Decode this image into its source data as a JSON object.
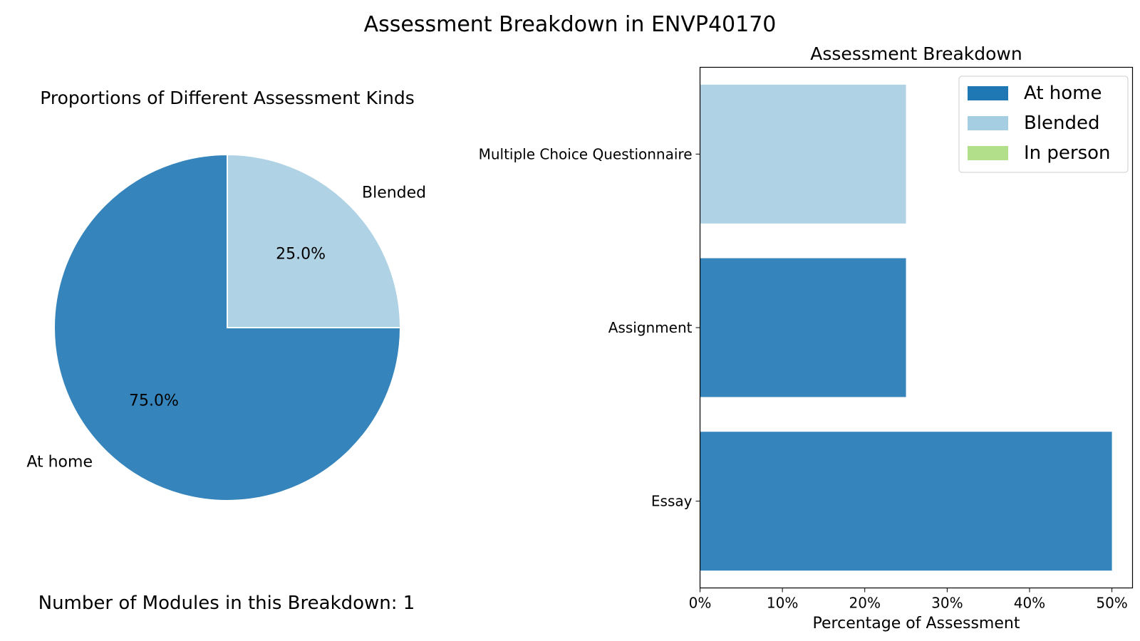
{
  "figure": {
    "title": "Assessment Breakdown in ENVP40170",
    "note": "Number of Modules in this Breakdown: 1"
  },
  "chart_data": [
    {
      "type": "pie",
      "title": "Proportions of Different Assessment Kinds",
      "slices": [
        {
          "label": "At home",
          "value": 75.0,
          "pct_label": "75.0%",
          "color": "#3584bb"
        },
        {
          "label": "Blended",
          "value": 25.0,
          "pct_label": "25.0%",
          "color": "#afd2e5"
        }
      ],
      "start_angle": 0,
      "direction": "clockwise"
    },
    {
      "type": "bar",
      "orientation": "horizontal",
      "title": "Assessment Breakdown",
      "xlabel": "Percentage of Assessment",
      "ylabel": "",
      "xlim": [
        0,
        52.5
      ],
      "xticks": [
        {
          "value": 0,
          "label": "0%"
        },
        {
          "value": 10,
          "label": "10%"
        },
        {
          "value": 20,
          "label": "20%"
        },
        {
          "value": 30,
          "label": "30%"
        },
        {
          "value": 40,
          "label": "40%"
        },
        {
          "value": 50,
          "label": "50%"
        }
      ],
      "categories": [
        "Multiple Choice Questionnaire",
        "Assignment",
        "Essay"
      ],
      "bars": [
        {
          "category": "Multiple Choice Questionnaire",
          "value": 25,
          "kind": "Blended"
        },
        {
          "category": "Assignment",
          "value": 25,
          "kind": "At home"
        },
        {
          "category": "Essay",
          "value": 50,
          "kind": "At home"
        }
      ],
      "bar_colors": {
        "At home": "#3584bb",
        "Blended": "#afd2e5",
        "In person": "#b2df8a"
      },
      "legend": {
        "placement": "top-right",
        "entries": [
          {
            "label": "At home",
            "color": "#1f77b4"
          },
          {
            "label": "Blended",
            "color": "#a6cee3"
          },
          {
            "label": "In person",
            "color": "#b2df8a"
          }
        ]
      },
      "grid": false
    }
  ]
}
